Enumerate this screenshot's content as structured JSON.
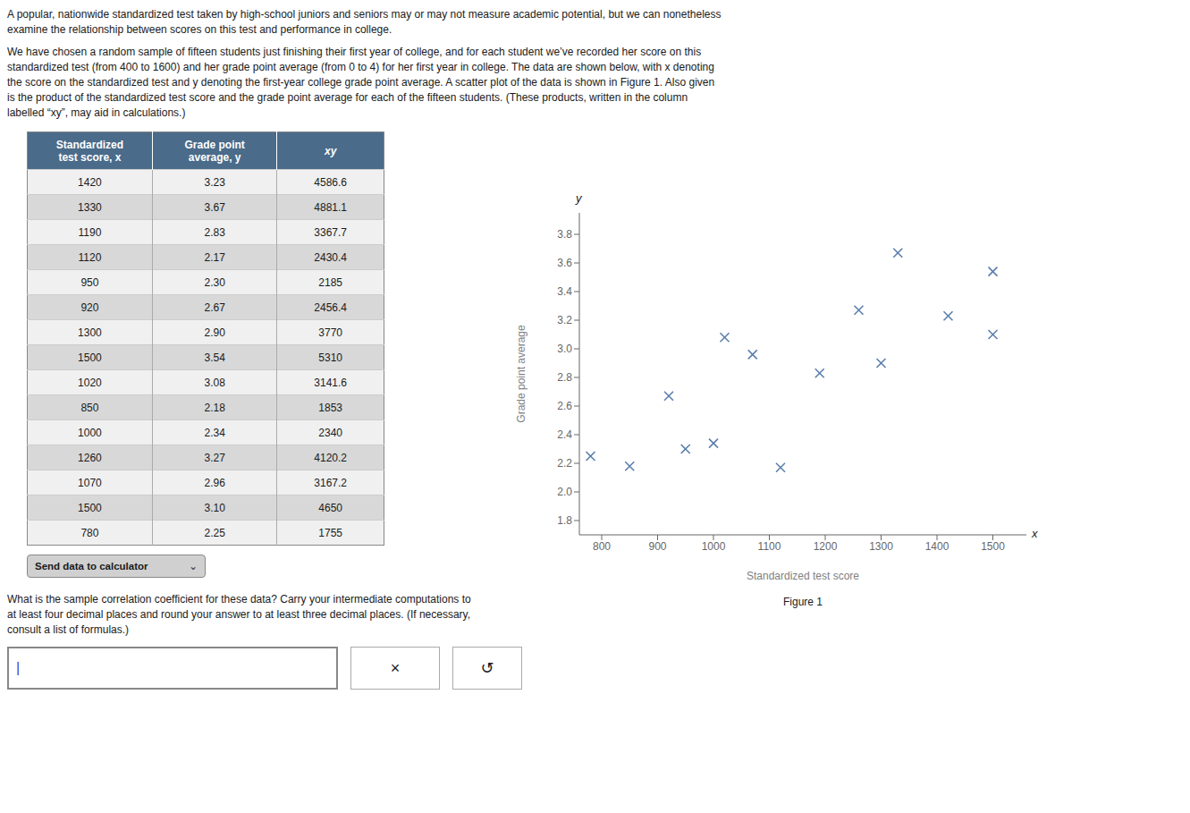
{
  "chart_data": {
    "type": "scatter",
    "x": [
      1420,
      1330,
      1190,
      1120,
      950,
      920,
      1300,
      1500,
      1020,
      850,
      1000,
      1260,
      1070,
      1500,
      780
    ],
    "values": [
      3.23,
      3.67,
      2.83,
      2.17,
      2.3,
      2.67,
      2.9,
      3.54,
      3.08,
      2.18,
      2.34,
      3.27,
      2.96,
      3.1,
      2.25
    ],
    "color": "#5b7fad",
    "marker": "x",
    "grid": false,
    "xlim": [
      760,
      1560
    ],
    "ylim": [
      1.7,
      3.95
    ],
    "xticks": [
      800,
      900,
      1000,
      1100,
      1200,
      1300,
      1400,
      1500
    ],
    "yticks": [
      1.8,
      {
        "value": 2,
        "label": "2.0"
      },
      2.2,
      2.4,
      2.6,
      2.8,
      {
        "value": 3,
        "label": "3.0"
      },
      3.2,
      3.4,
      3.6,
      3.8
    ],
    "x_label": "Standardized test score",
    "y_label": "Grade point average",
    "x_end_label": "x",
    "y_end_label": "y",
    "figure_label": "Figure 1",
    "paragraphs": [
      "A popular, nationwide standardized test taken by high-school juniors and seniors may or may not measure academic potential, but we can nonetheless examine the relationship between scores on this test and performance in college.",
      "We have chosen a random sample of fifteen students just finishing their first year of college, and for each student we’ve recorded her score on this standardized test (from 400 to 1600) and her grade point average (from 0 to 4) for her first year in college. The data are shown below, with x denoting the score on the standardized test and y denoting the first-year college grade point average. A scatter plot of the data is shown in Figure 1. Also given is the product of the standardized test score and the grade point average for each of the fifteen students. (These products, written in the column labelled “xy”, may aid in calculations.)"
    ],
    "table": {
      "headers": [
        "Standardized\ntest score, x",
        "Grade point\naverage, y",
        "xy"
      ],
      "rows": [
        [
          "1420",
          "3.23",
          "4586.6"
        ],
        [
          "1330",
          "3.67",
          "4881.1"
        ],
        [
          "1190",
          "2.83",
          "3367.7"
        ],
        [
          "1120",
          "2.17",
          "2430.4"
        ],
        [
          "950",
          "2.30",
          "2185"
        ],
        [
          "920",
          "2.67",
          "2456.4"
        ],
        [
          "1300",
          "2.90",
          "3770"
        ],
        [
          "1500",
          "3.54",
          "5310"
        ],
        [
          "1020",
          "3.08",
          "3141.6"
        ],
        [
          "850",
          "2.18",
          "1853"
        ],
        [
          "1000",
          "2.34",
          "2340"
        ],
        [
          "1260",
          "3.27",
          "4120.2"
        ],
        [
          "1070",
          "2.96",
          "3167.2"
        ],
        [
          "1500",
          "3.10",
          "4650"
        ],
        [
          "780",
          "2.25",
          "1755"
        ]
      ]
    },
    "button": "Send data to calculator",
    "button_icon": "⌄",
    "question": "What is the sample correlation coefficient for these data? Carry your intermediate computations to at least four decimal places and round your answer to at least three decimal places. (If necessary, consult a list of formulas.)",
    "cursor": "|",
    "controls": [
      "×",
      "↺"
    ]
  }
}
